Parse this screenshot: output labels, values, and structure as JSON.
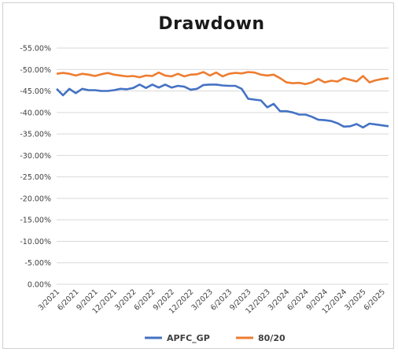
{
  "chart_data": {
    "type": "line",
    "title": "Drawdown",
    "xlabel": "",
    "ylabel": "",
    "y_axis_reversed": true,
    "ylim": [
      0,
      -55
    ],
    "yticks": [
      0,
      -5,
      -10,
      -15,
      -20,
      -25,
      -30,
      -35,
      -40,
      -45,
      -50,
      -55
    ],
    "ytick_labels": [
      "0.00%",
      "-5.00%",
      "-10.00%",
      "-15.00%",
      "-20.00%",
      "-25.00%",
      "-30.00%",
      "-35.00%",
      "-40.00%",
      "-45.00%",
      "-50.00%",
      "-55.00%"
    ],
    "x_tick_labels": [
      "3/2021",
      "6/2021",
      "9/2021",
      "12/2021",
      "3/2022",
      "6/2022",
      "9/2022",
      "12/2022",
      "3/2023",
      "6/2023",
      "9/2023",
      "12/2023",
      "3/2024",
      "6/2024",
      "9/2024",
      "12/2024",
      "3/2025",
      "6/2025"
    ],
    "grid": true,
    "legend_position": "bottom",
    "series": [
      {
        "name": "APFC_GP",
        "color": "#4472c4",
        "points": [
          [
            "3/2021",
            -45.5
          ],
          [
            "4/2021",
            -44.0
          ],
          [
            "5/2021",
            -45.5
          ],
          [
            "6/2021",
            -44.5
          ],
          [
            "7/2021",
            -45.5
          ],
          [
            "8/2021",
            -45.2
          ],
          [
            "9/2021",
            -45.2
          ],
          [
            "10/2021",
            -45.0
          ],
          [
            "11/2021",
            -45.0
          ],
          [
            "12/2021",
            -45.2
          ],
          [
            "1/2022",
            -45.5
          ],
          [
            "2/2022",
            -45.4
          ],
          [
            "3/2022",
            -45.7
          ],
          [
            "4/2022",
            -46.5
          ],
          [
            "5/2022",
            -45.7
          ],
          [
            "6/2022",
            -46.5
          ],
          [
            "7/2022",
            -45.8
          ],
          [
            "8/2022",
            -46.5
          ],
          [
            "9/2022",
            -45.8
          ],
          [
            "10/2022",
            -46.2
          ],
          [
            "11/2022",
            -46.0
          ],
          [
            "12/2022",
            -45.3
          ],
          [
            "1/2023",
            -45.5
          ],
          [
            "2/2023",
            -46.4
          ],
          [
            "3/2023",
            -46.5
          ],
          [
            "4/2023",
            -46.5
          ],
          [
            "5/2023",
            -46.3
          ],
          [
            "6/2023",
            -46.2
          ],
          [
            "7/2023",
            -46.2
          ],
          [
            "8/2023",
            -45.5
          ],
          [
            "9/2023",
            -43.2
          ],
          [
            "10/2023",
            -43.0
          ],
          [
            "11/2023",
            -42.8
          ],
          [
            "12/2023",
            -41.2
          ],
          [
            "1/2024",
            -42.0
          ],
          [
            "2/2024",
            -40.3
          ],
          [
            "3/2024",
            -40.3
          ],
          [
            "4/2024",
            -40.0
          ],
          [
            "5/2024",
            -39.5
          ],
          [
            "6/2024",
            -39.5
          ],
          [
            "7/2024",
            -39.0
          ],
          [
            "8/2024",
            -38.3
          ],
          [
            "9/2024",
            -38.2
          ],
          [
            "10/2024",
            -38.0
          ],
          [
            "11/2024",
            -37.5
          ],
          [
            "12/2024",
            -36.7
          ],
          [
            "1/2025",
            -36.8
          ],
          [
            "2/2025",
            -37.3
          ],
          [
            "3/2025",
            -36.5
          ],
          [
            "4/2025",
            -37.4
          ],
          [
            "5/2025",
            -37.2
          ],
          [
            "6/2025",
            -37.0
          ],
          [
            "7/2025",
            -36.8
          ]
        ]
      },
      {
        "name": "80/20",
        "color": "#ed7d31",
        "points": [
          [
            "3/2021",
            -49.0
          ],
          [
            "4/2021",
            -49.2
          ],
          [
            "5/2021",
            -49.0
          ],
          [
            "6/2021",
            -48.6
          ],
          [
            "7/2021",
            -49.0
          ],
          [
            "8/2021",
            -48.8
          ],
          [
            "9/2021",
            -48.5
          ],
          [
            "10/2021",
            -48.9
          ],
          [
            "11/2021",
            -49.2
          ],
          [
            "12/2021",
            -48.8
          ],
          [
            "1/2022",
            -48.6
          ],
          [
            "2/2022",
            -48.4
          ],
          [
            "3/2022",
            -48.5
          ],
          [
            "4/2022",
            -48.2
          ],
          [
            "5/2022",
            -48.6
          ],
          [
            "6/2022",
            -48.5
          ],
          [
            "7/2022",
            -49.3
          ],
          [
            "8/2022",
            -48.6
          ],
          [
            "9/2022",
            -48.4
          ],
          [
            "10/2022",
            -49.0
          ],
          [
            "11/2022",
            -48.4
          ],
          [
            "12/2022",
            -48.8
          ],
          [
            "1/2023",
            -48.9
          ],
          [
            "2/2023",
            -49.4
          ],
          [
            "3/2023",
            -48.6
          ],
          [
            "4/2023",
            -49.3
          ],
          [
            "5/2023",
            -48.4
          ],
          [
            "6/2023",
            -49.0
          ],
          [
            "7/2023",
            -49.2
          ],
          [
            "8/2023",
            -49.1
          ],
          [
            "9/2023",
            -49.4
          ],
          [
            "10/2023",
            -49.3
          ],
          [
            "11/2023",
            -48.8
          ],
          [
            "12/2023",
            -48.6
          ],
          [
            "1/2024",
            -48.8
          ],
          [
            "2/2024",
            -48.0
          ],
          [
            "3/2024",
            -47.0
          ],
          [
            "4/2024",
            -46.8
          ],
          [
            "5/2024",
            -46.9
          ],
          [
            "6/2024",
            -46.6
          ],
          [
            "7/2024",
            -47.0
          ],
          [
            "8/2024",
            -47.8
          ],
          [
            "9/2024",
            -47.0
          ],
          [
            "10/2024",
            -47.4
          ],
          [
            "11/2024",
            -47.2
          ],
          [
            "12/2024",
            -48.0
          ],
          [
            "1/2025",
            -47.6
          ],
          [
            "2/2025",
            -47.2
          ],
          [
            "3/2025",
            -48.5
          ],
          [
            "4/2025",
            -47.0
          ],
          [
            "5/2025",
            -47.5
          ],
          [
            "6/2025",
            -47.8
          ],
          [
            "7/2025",
            -48.0
          ]
        ]
      }
    ]
  }
}
